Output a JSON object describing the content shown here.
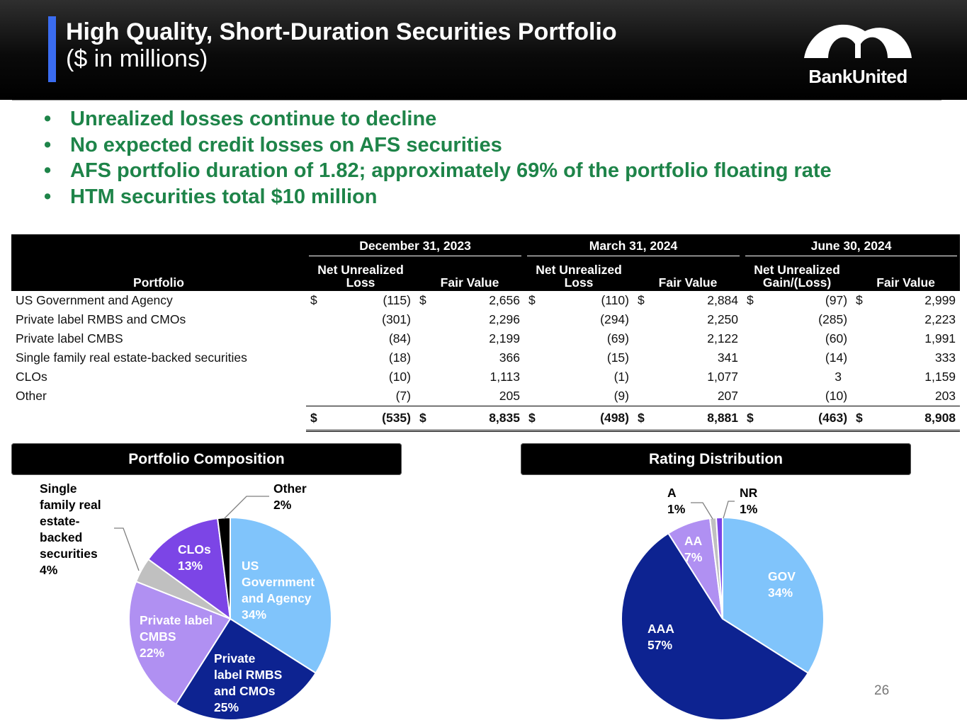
{
  "header": {
    "title_line1": "High Quality, Short-Duration Securities Portfolio",
    "title_line2": "($ in millions)",
    "logo_text": "BankUnited",
    "colors": {
      "accent": "#3a6cf0",
      "bullet_green": "#1e8449"
    }
  },
  "bullets": [
    "Unrealized losses continue to decline",
    "No expected credit losses on AFS securities",
    "AFS portfolio duration of 1.82; approximately 69% of the portfolio floating rate",
    "HTM securities total $10 million"
  ],
  "bullet_glyph": "•",
  "table": {
    "portfolio_header": "Portfolio",
    "periods": [
      "December 31, 2023",
      "March 31, 2024",
      "June 30, 2024"
    ],
    "sub_headers": {
      "nul1": "Net Unrealized",
      "nul2": "Loss",
      "nugl1": "Net Unrealized",
      "nugl2": "Gain/(Loss)",
      "fv": "Fair Value"
    },
    "currency": "$",
    "rows": [
      {
        "label": "US Government and Agency",
        "v": [
          "(115)",
          "2,656",
          "(110)",
          "2,884",
          "(97)",
          "2,999"
        ]
      },
      {
        "label": "Private label RMBS and CMOs",
        "v": [
          "(301)",
          "2,296",
          "(294)",
          "2,250",
          "(285)",
          "2,223"
        ]
      },
      {
        "label": "Private label CMBS",
        "v": [
          "(84)",
          "2,199",
          "(69)",
          "2,122",
          "(60)",
          "1,991"
        ]
      },
      {
        "label": "Single family real estate-backed securities",
        "v": [
          "(18)",
          "366",
          "(15)",
          "341",
          "(14)",
          "333"
        ]
      },
      {
        "label": "CLOs",
        "v": [
          "(10)",
          "1,113",
          "(1)",
          "1,077",
          "3",
          "1,159"
        ]
      },
      {
        "label": "Other",
        "v": [
          "(7)",
          "205",
          "(9)",
          "207",
          "(10)",
          "203"
        ]
      }
    ],
    "total": [
      "(535)",
      "8,835",
      "(498)",
      "8,881",
      "(463)",
      "8,908"
    ]
  },
  "composition": {
    "title": "Portfolio Composition",
    "slices": [
      {
        "lines": [
          "US",
          "Government",
          "and Agency"
        ],
        "pct": "34%",
        "value": 34,
        "color": "#80c4fb"
      },
      {
        "lines": [
          "Private",
          "label RMBS",
          "and CMOs"
        ],
        "pct": "25%",
        "value": 25,
        "color": "#0d2391"
      },
      {
        "lines": [
          "Private label",
          "CMBS"
        ],
        "pct": "22%",
        "value": 22,
        "color": "#b090f2"
      },
      {
        "lines": [
          "Single",
          "family real",
          "estate-",
          "backed",
          "securities"
        ],
        "pct": "4%",
        "value": 4,
        "color": "#c0c0c0"
      },
      {
        "lines": [
          "CLOs"
        ],
        "pct": "13%",
        "value": 13,
        "color": "#7c45e6"
      },
      {
        "lines": [
          "Other"
        ],
        "pct": "2%",
        "value": 2,
        "color": "#000000"
      }
    ]
  },
  "rating": {
    "title": "Rating Distribution",
    "slices": [
      {
        "lines": [
          "GOV"
        ],
        "pct": "34%",
        "value": 34,
        "color": "#80c4fb"
      },
      {
        "lines": [
          "AAA"
        ],
        "pct": "57%",
        "value": 57,
        "color": "#0d2391"
      },
      {
        "lines": [
          "AA"
        ],
        "pct": "7%",
        "value": 7,
        "color": "#b090f2"
      },
      {
        "lines": [
          "A"
        ],
        "pct": "1%",
        "value": 1,
        "color": "#c0c0c0"
      },
      {
        "lines": [
          "NR"
        ],
        "pct": "1%",
        "value": 1,
        "color": "#7c45e6"
      }
    ]
  },
  "page_number": "26"
}
